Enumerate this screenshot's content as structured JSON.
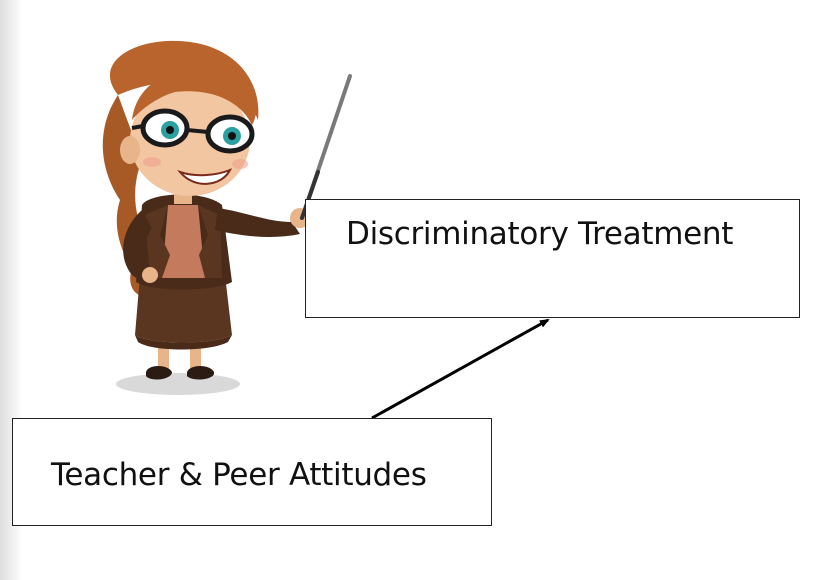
{
  "diagram": {
    "nodes": [
      {
        "id": "discriminatory-treatment",
        "label": "Discriminatory Treatment"
      },
      {
        "id": "teacher-peer-attitudes",
        "label": "Teacher & Peer Attitudes"
      }
    ],
    "edges": [
      {
        "from": "teacher-peer-attitudes",
        "to": "discriminatory-treatment",
        "style": "arrow"
      }
    ]
  },
  "illustration": {
    "icon": "teacher-with-pointer-icon"
  },
  "colors": {
    "box_border": "#222222",
    "arrow": "#000000",
    "hair": "#b8642c",
    "jacket": "#4a2b1a",
    "blouse": "#c47a5c"
  }
}
